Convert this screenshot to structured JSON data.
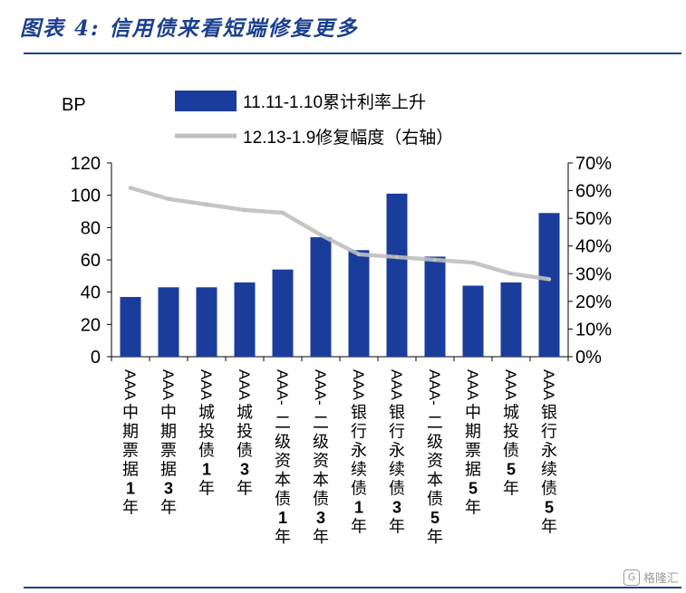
{
  "title": "图表 4:  信用债来看短端修复更多",
  "watermark": "格隆汇",
  "chart_data": {
    "type": "bar",
    "ylabel": "BP",
    "ylim": [
      0,
      120
    ],
    "y_ticks": [
      "0",
      "20",
      "40",
      "60",
      "80",
      "100",
      "120"
    ],
    "y2lim": [
      0,
      70
    ],
    "y2_ticks": [
      "0%",
      "10%",
      "20%",
      "30%",
      "40%",
      "50%",
      "60%",
      "70%"
    ],
    "categories": [
      "AAA中期票据1年",
      "AAA中期票据3年",
      "AAA城投债1年",
      "AAA城投债3年",
      "AAA-二级资本债1年",
      "AAA-二级资本债3年",
      "AAA银行永续债1年",
      "AAA银行永续债3年",
      "AAA-二级资本债5年",
      "AAA中期票据5年",
      "AAA城投债5年",
      "AAA银行永续债5年"
    ],
    "series": [
      {
        "name": "11.11-1.10累计利率上升",
        "type": "bar",
        "axis": "left",
        "color": "#1a3d9c",
        "values": [
          37,
          43,
          43,
          46,
          54,
          74,
          66,
          101,
          62,
          44,
          46,
          89
        ]
      },
      {
        "name": "12.13-1.9修复幅度（右轴）",
        "type": "line",
        "axis": "right",
        "color": "#bfbfbf",
        "values": [
          61,
          57,
          55,
          53,
          52,
          44,
          37,
          36,
          35,
          34,
          30,
          28
        ]
      }
    ],
    "legend_position": "top"
  }
}
